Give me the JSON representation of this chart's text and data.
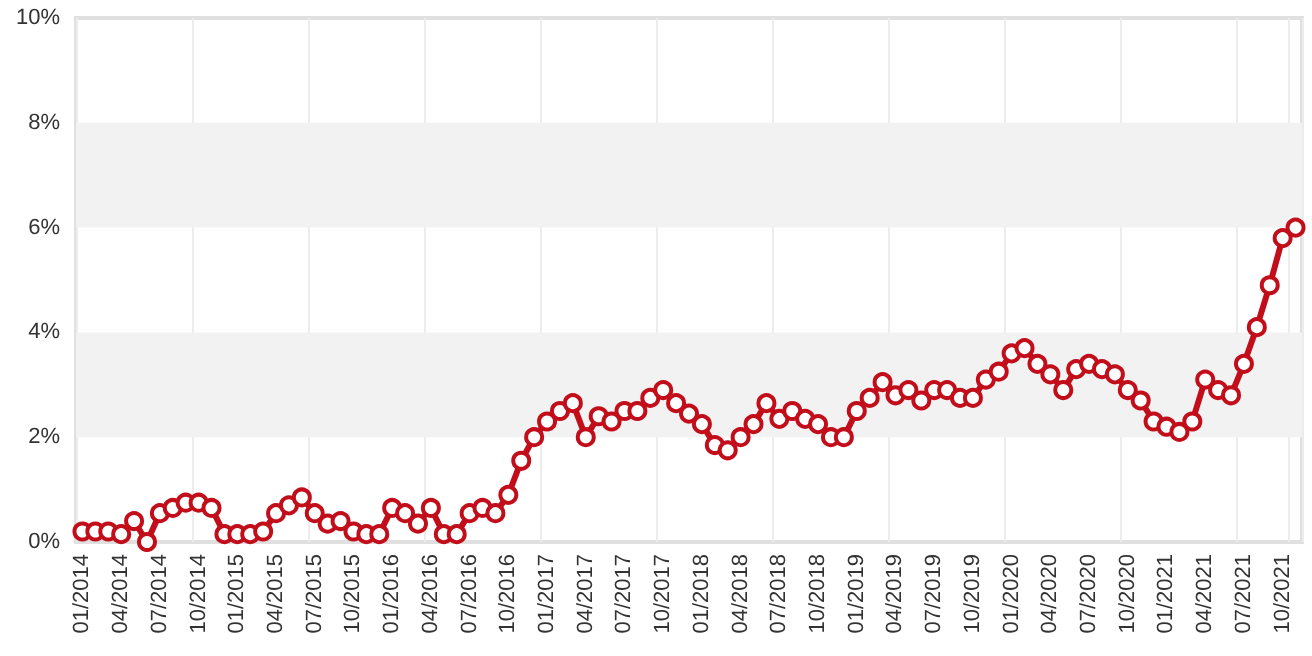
{
  "chart_data": {
    "type": "line",
    "categories": [
      "01/2014",
      null,
      null,
      "04/2014",
      null,
      null,
      "07/2014",
      null,
      null,
      "10/2014",
      null,
      null,
      "01/2015",
      null,
      null,
      "04/2015",
      null,
      null,
      "07/2015",
      null,
      null,
      "10/2015",
      null,
      null,
      "01/2016",
      null,
      null,
      "04/2016",
      null,
      null,
      "07/2016",
      null,
      null,
      "10/2016",
      null,
      null,
      "01/2017",
      null,
      null,
      "04/2017",
      null,
      null,
      "07/2017",
      null,
      null,
      "10/2017",
      null,
      null,
      "01/2018",
      null,
      null,
      "04/2018",
      null,
      null,
      "07/2018",
      null,
      null,
      "10/2018",
      null,
      null,
      "01/2019",
      null,
      null,
      "04/2019",
      null,
      null,
      "07/2019",
      null,
      null,
      "10/2019",
      null,
      null,
      "01/2020",
      null,
      null,
      "04/2020",
      null,
      null,
      "07/2020",
      null,
      null,
      "10/2020",
      null,
      null,
      "01/2021",
      null,
      null,
      "04/2021",
      null,
      null,
      "07/2021",
      null,
      null,
      "10/2021",
      null
    ],
    "series": [
      {
        "color": "#c20e1a",
        "values": [
          0.2,
          0.2,
          0.2,
          0.15,
          0.4,
          0.0,
          0.55,
          0.65,
          0.75,
          0.75,
          0.65,
          0.15,
          0.15,
          0.15,
          0.2,
          0.55,
          0.7,
          0.85,
          0.55,
          0.35,
          0.4,
          0.2,
          0.15,
          0.15,
          0.65,
          0.55,
          0.35,
          0.65,
          0.15,
          0.15,
          0.55,
          0.65,
          0.55,
          0.9,
          1.55,
          2.0,
          2.3,
          2.5,
          2.65,
          2.0,
          2.4,
          2.3,
          2.5,
          2.5,
          2.75,
          2.9,
          2.65,
          2.45,
          2.25,
          1.85,
          1.75,
          2.0,
          2.25,
          2.65,
          2.35,
          2.5,
          2.35,
          2.25,
          2.0,
          2.0,
          2.5,
          2.75,
          3.05,
          2.8,
          2.9,
          2.7,
          2.9,
          2.9,
          2.75,
          2.75,
          3.1,
          3.25,
          3.6,
          3.7,
          3.4,
          3.2,
          2.9,
          3.3,
          3.4,
          3.3,
          3.2,
          2.9,
          2.7,
          2.3,
          2.2,
          2.1,
          2.3,
          3.1,
          2.9,
          2.8,
          3.4,
          4.1,
          4.9,
          5.8,
          6.0
        ]
      }
    ],
    "ylim": [
      0,
      10
    ],
    "yticks": [
      {
        "value": 0,
        "label": "0%"
      },
      {
        "value": 2,
        "label": "2%"
      },
      {
        "value": 4,
        "label": "4%"
      },
      {
        "value": 6,
        "label": "6%"
      },
      {
        "value": 8,
        "label": "8%"
      },
      {
        "value": 10,
        "label": "10%"
      }
    ],
    "bands": [
      {
        "axis": "y",
        "from": 2,
        "to": 4,
        "color": "#f2f2f2"
      },
      {
        "axis": "y",
        "from": 6,
        "to": 8,
        "color": "#f2f2f2"
      }
    ],
    "grid": "x",
    "marker": "circle",
    "line_style": "solid"
  }
}
